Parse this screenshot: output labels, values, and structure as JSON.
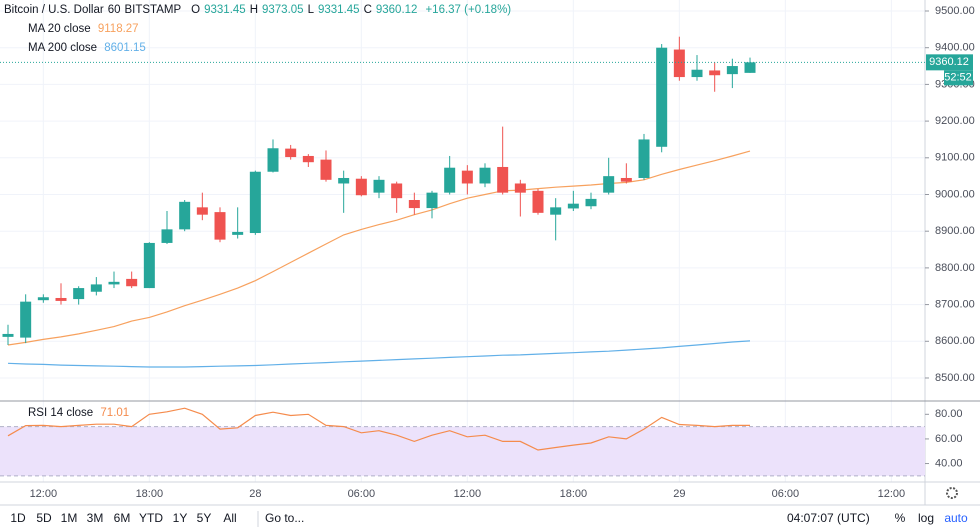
{
  "header": {
    "symbol": "Bitcoin / U.S. Dollar",
    "interval": "60",
    "exchange": "BITSTAMP",
    "ohlc_labels": [
      "O",
      "H",
      "L",
      "C"
    ],
    "change": "+16.37 (+0.18%)",
    "countdown": "52:52"
  },
  "toolbar": {
    "ranges": [
      "1D",
      "5D",
      "1M",
      "3M",
      "6M",
      "YTD",
      "1Y",
      "5Y",
      "All"
    ],
    "goto": "Go to...",
    "clock": "04:07:07 (UTC)",
    "options": [
      "%",
      "log",
      "auto"
    ]
  },
  "chart_data": [
    {
      "type": "candlestick",
      "up_color": "#26a69a",
      "down_color": "#ef5350",
      "grid": true,
      "categories": [
        null,
        null,
        "12:00",
        null,
        null,
        null,
        null,
        null,
        "18:00",
        null,
        null,
        null,
        null,
        null,
        "28",
        null,
        null,
        null,
        null,
        null,
        "06:00",
        null,
        null,
        null,
        null,
        null,
        "12:00",
        null,
        null,
        null,
        null,
        null,
        "18:00",
        null,
        null,
        null,
        null,
        null,
        "29",
        null,
        null,
        null,
        null,
        null,
        "06:00",
        null,
        null,
        null,
        null,
        null,
        "12:00"
      ],
      "open": [
        8612,
        8610,
        8712,
        8718,
        8715,
        8735,
        8755,
        8770,
        8745,
        8868,
        8905,
        8965,
        8952,
        8890,
        8895,
        9062,
        9125,
        9105,
        9095,
        9030,
        9043,
        9005,
        9030,
        8985,
        8963,
        9005,
        9065,
        9030,
        9075,
        9030,
        9010,
        8945,
        8962,
        8968,
        9005,
        9045,
        9045,
        9130,
        9395,
        9320,
        9338,
        9328,
        9331.45,
        null,
        null,
        null,
        null,
        null,
        null,
        null,
        null
      ],
      "high": [
        8645,
        8728,
        8728,
        8758,
        8750,
        8775,
        8790,
        8790,
        8870,
        8955,
        8985,
        9005,
        8965,
        8965,
        9065,
        9150,
        9135,
        9110,
        9120,
        9065,
        9050,
        9050,
        9035,
        9005,
        9010,
        9105,
        9080,
        9085,
        9185,
        9040,
        9015,
        8990,
        9010,
        9005,
        9100,
        9085,
        9165,
        9410,
        9430,
        9380,
        9360,
        9370,
        9373.05,
        null,
        null,
        null,
        null,
        null,
        null,
        null,
        null
      ],
      "low": [
        8590,
        8595,
        8705,
        8700,
        8700,
        8725,
        8745,
        8745,
        8745,
        8865,
        8900,
        8930,
        8870,
        8880,
        8890,
        9060,
        9095,
        9075,
        9035,
        8950,
        8995,
        8990,
        8950,
        8945,
        8935,
        9000,
        9000,
        9020,
        9000,
        8940,
        8945,
        8875,
        8955,
        8960,
        9000,
        9030,
        9040,
        9115,
        9310,
        9310,
        9280,
        9290,
        9331.45,
        null,
        null,
        null,
        null,
        null,
        null,
        null,
        null
      ],
      "close": [
        8620,
        8708,
        8720,
        8710,
        8745,
        8755,
        8762,
        8750,
        8868,
        8905,
        8980,
        8945,
        8877,
        8898,
        9062,
        9126,
        9102,
        9088,
        9040,
        9045,
        8998,
        9040,
        8990,
        8963,
        9005,
        9073,
        9030,
        9073,
        9005,
        9005,
        8950,
        8965,
        8975,
        8988,
        9050,
        9035,
        9150,
        9400,
        9320,
        9340,
        9325,
        9350,
        9360.12,
        null,
        null,
        null,
        null,
        null,
        null,
        null,
        null
      ],
      "series": [
        {
          "name": "MA 20 close",
          "color": "#f7a15e",
          "values": [
            8590,
            8597,
            8605,
            8612,
            8620,
            8630,
            8640,
            8655,
            8665,
            8680,
            8697,
            8712,
            8728,
            8745,
            8765,
            8790,
            8815,
            8840,
            8865,
            8890,
            8905,
            8918,
            8930,
            8945,
            8958,
            8975,
            8990,
            9000,
            9010,
            9012,
            9016,
            9020,
            9023,
            9026,
            9030,
            9033,
            9040,
            9055,
            9068,
            9080,
            9092,
            9105,
            9118.27,
            null,
            null,
            null,
            null,
            null,
            null,
            null,
            null
          ]
        },
        {
          "name": "MA 200 close",
          "color": "#62b0e8",
          "values": [
            8540,
            8538,
            8537,
            8535,
            8534,
            8533,
            8532,
            8531,
            8530,
            8530,
            8530,
            8531,
            8532,
            8533,
            8534,
            8536,
            8538,
            8540,
            8542,
            8544,
            8546,
            8548,
            8550,
            8552,
            8554,
            8556,
            8558,
            8560,
            8562,
            8563,
            8565,
            8567,
            8569,
            8571,
            8573,
            8576,
            8579,
            8582,
            8586,
            8590,
            8594,
            8598,
            8601.15,
            null,
            null,
            null,
            null,
            null,
            null,
            null,
            null
          ]
        }
      ],
      "ylim": [
        8440,
        9530
      ],
      "yticks": [
        {
          "value": 8500,
          "label": "8500.00"
        },
        {
          "value": 8600,
          "label": "8600.00"
        },
        {
          "value": 8700,
          "label": "8700.00"
        },
        {
          "value": 8800,
          "label": "8800.00"
        },
        {
          "value": 8900,
          "label": "8900.00"
        },
        {
          "value": 9000,
          "label": "9000.00"
        },
        {
          "value": 9100,
          "label": "9100.00"
        },
        {
          "value": 9200,
          "label": "9200.00"
        },
        {
          "value": 9300,
          "label": "9300.00"
        },
        {
          "value": 9400,
          "label": "9400.00"
        },
        {
          "value": 9500,
          "label": "9500.00"
        }
      ]
    },
    {
      "type": "line",
      "series": [
        {
          "name": "RSI 14 close",
          "color": "#f58b4c",
          "values": [
            62.5,
            70.8,
            71,
            70,
            71,
            72,
            72,
            70,
            80,
            82,
            85,
            80,
            68,
            69,
            79,
            81.7,
            79,
            80,
            71,
            70,
            65,
            66.7,
            63,
            58,
            63,
            66.7,
            61.7,
            63,
            58,
            58,
            51,
            53,
            55,
            56.7,
            61.7,
            60,
            68,
            77.5,
            71.7,
            71,
            70,
            71,
            71.01,
            null,
            null,
            null,
            null,
            null,
            null,
            null,
            null
          ]
        }
      ],
      "band": [
        30,
        70
      ],
      "band_color": "#ece2fb",
      "ylim": [
        25,
        90
      ],
      "yticks": [
        {
          "value": 40,
          "label": "40.00"
        },
        {
          "value": 60,
          "label": "60.00"
        },
        {
          "value": 80,
          "label": "80.00"
        }
      ]
    }
  ]
}
